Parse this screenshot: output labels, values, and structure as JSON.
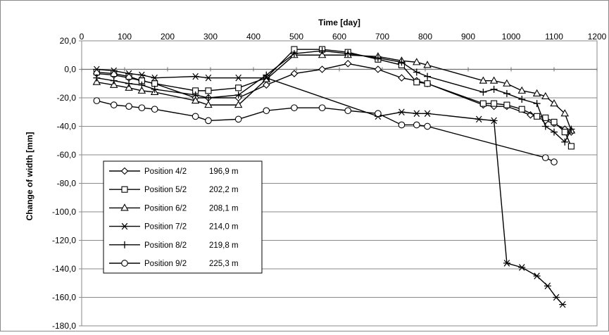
{
  "chart_data": {
    "type": "line",
    "title": "",
    "xlabel": "Time  [day]",
    "ylabel": "Change  of  width  [mm]",
    "xlim": [
      0,
      1200
    ],
    "ylim": [
      -180,
      20
    ],
    "x_ticks": [
      0,
      100,
      200,
      300,
      400,
      500,
      600,
      700,
      800,
      900,
      1000,
      1100,
      1200
    ],
    "y_ticks": [
      20,
      0,
      -20,
      -40,
      -60,
      -80,
      -100,
      -120,
      -140,
      -160,
      -180
    ],
    "y_tick_labels": [
      "20,0",
      "0,0",
      "-20,0",
      "-40,0",
      "-60,0",
      "-80,0",
      "-100,0",
      "-120,0",
      "-140,0",
      "-160,0",
      "-180,0"
    ],
    "x_axis_position": "top",
    "grid": "horizontal",
    "legend_position": "lower-left",
    "series": [
      {
        "name": "Position 4/2",
        "distance": "196,9 m",
        "marker": "diamond",
        "x": [
          35,
          75,
          110,
          140,
          170,
          265,
          295,
          365,
          430,
          495,
          560,
          620,
          690,
          745,
          780,
          805,
          935,
          960,
          990,
          1045,
          1080,
          1100,
          1125,
          1140
        ],
        "y": [
          -3,
          -4,
          -6,
          -8,
          -10,
          -20,
          -20,
          -20,
          -11,
          -3,
          0,
          4,
          0,
          -6,
          -8,
          -10,
          -25,
          -26,
          -26,
          -32,
          -36,
          -38,
          -42,
          -44
        ]
      },
      {
        "name": "Position 5/2",
        "distance": "202,2 m",
        "marker": "square",
        "x": [
          35,
          75,
          110,
          140,
          170,
          265,
          295,
          365,
          430,
          495,
          560,
          620,
          690,
          745,
          780,
          805,
          935,
          960,
          990,
          1025,
          1060,
          1080,
          1100,
          1125,
          1140
        ],
        "y": [
          -2,
          -3,
          -5,
          -8,
          -10,
          -15,
          -15,
          -13,
          -6,
          14,
          14,
          12,
          7,
          3,
          -9,
          -10,
          -24,
          -24,
          -25,
          -28,
          -33,
          -34,
          -37,
          -44,
          -54
        ]
      },
      {
        "name": "Position 6/2",
        "distance": "208,1 m",
        "marker": "triangle",
        "x": [
          35,
          75,
          110,
          140,
          170,
          265,
          295,
          365,
          430,
          495,
          560,
          620,
          690,
          745,
          780,
          805,
          935,
          960,
          990,
          1025,
          1060,
          1080,
          1100,
          1125,
          1140
        ],
        "y": [
          -9,
          -11,
          -13,
          -15,
          -16,
          -22,
          -25,
          -25,
          -7,
          10,
          10,
          10,
          9,
          6,
          5,
          3,
          -8,
          -8,
          -10,
          -15,
          -17,
          -19,
          -24,
          -31,
          -43
        ]
      },
      {
        "name": "Position 7/2",
        "distance": "214,0 m",
        "marker": "asterisk",
        "x": [
          35,
          75,
          110,
          140,
          170,
          265,
          295,
          365,
          430,
          690,
          745,
          780,
          805,
          925,
          960,
          990,
          1025,
          1060,
          1085,
          1105,
          1120
        ],
        "y": [
          0,
          -1,
          -3,
          -4,
          -6,
          -5,
          -6,
          -6,
          -6,
          -33,
          -30,
          -31,
          -31,
          -35,
          -36,
          -136,
          -139,
          -145,
          -152,
          -160,
          -165
        ]
      },
      {
        "name": "Position 8/2",
        "distance": "219,8 m",
        "marker": "plus",
        "x": [
          35,
          75,
          110,
          140,
          170,
          265,
          295,
          365,
          430,
          495,
          560,
          620,
          690,
          745,
          780,
          805,
          935,
          960,
          990,
          1025,
          1060,
          1080,
          1100,
          1125,
          1140
        ],
        "y": [
          -6,
          -8,
          -10,
          -11,
          -14,
          -18,
          -20,
          -18,
          -4,
          11,
          13,
          11,
          8,
          5,
          -2,
          -5,
          -16,
          -14,
          -17,
          -21,
          -24,
          -40,
          -44,
          -51,
          -42
        ]
      },
      {
        "name": "Position 9/2",
        "distance": "225,3 m",
        "marker": "circle",
        "x": [
          35,
          75,
          110,
          140,
          170,
          265,
          295,
          365,
          430,
          495,
          560,
          620,
          690,
          745,
          780,
          805,
          1080,
          1100
        ],
        "y": [
          -22,
          -25,
          -26,
          -27,
          -28,
          -33,
          -36,
          -35,
          -29,
          -27,
          -27,
          -29,
          -31,
          -39,
          -39,
          -40,
          -62,
          -65
        ]
      }
    ]
  }
}
